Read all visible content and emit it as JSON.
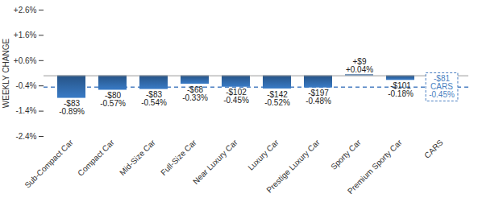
{
  "chart_data": {
    "type": "bar",
    "ylabel": "WEEKLY CHANGE",
    "categories": [
      "Sub-Compact Car",
      "Compact Car",
      "Mid-Size Car",
      "Full-Size Car",
      "Near Luxury Car",
      "Luxury Car",
      "Prestige Luxury Car",
      "Sporty Car",
      "Premium Sporty Car",
      "CARS"
    ],
    "values": [
      -0.89,
      -0.57,
      -0.54,
      -0.33,
      -0.45,
      -0.52,
      -0.48,
      0.04,
      -0.18,
      null
    ],
    "value_labels": [
      "-0.89%",
      "-0.57%",
      "-0.54%",
      "-0.33%",
      "-0.45%",
      "-0.52%",
      "-0.48%",
      "+0.04%",
      "-0.18%",
      null
    ],
    "dollar_labels": [
      "-$83",
      "-$80",
      "-$83",
      "-$68",
      "-$102",
      "-$142",
      "-$197",
      "+$9",
      "-$101",
      null
    ],
    "average": {
      "name": "CARS",
      "value": -0.45,
      "value_label": "-0.45%",
      "dollar_label": "-$81",
      "color": "#4a7fc1",
      "line_style": "dashed"
    },
    "color": "#2e63a0",
    "ylim": [
      -2.4,
      2.6
    ],
    "yticks": [
      {
        "value": -2.4,
        "label": "-2.4%"
      },
      {
        "value": -1.4,
        "label": "-1.4%"
      },
      {
        "value": -0.4,
        "label": "-0.4%"
      },
      {
        "value": 0.6,
        "label": "+0.6%"
      },
      {
        "value": 1.6,
        "label": "+1.6%"
      },
      {
        "value": 2.6,
        "label": "+2.6%"
      }
    ],
    "grid": false,
    "data_labels": true
  }
}
